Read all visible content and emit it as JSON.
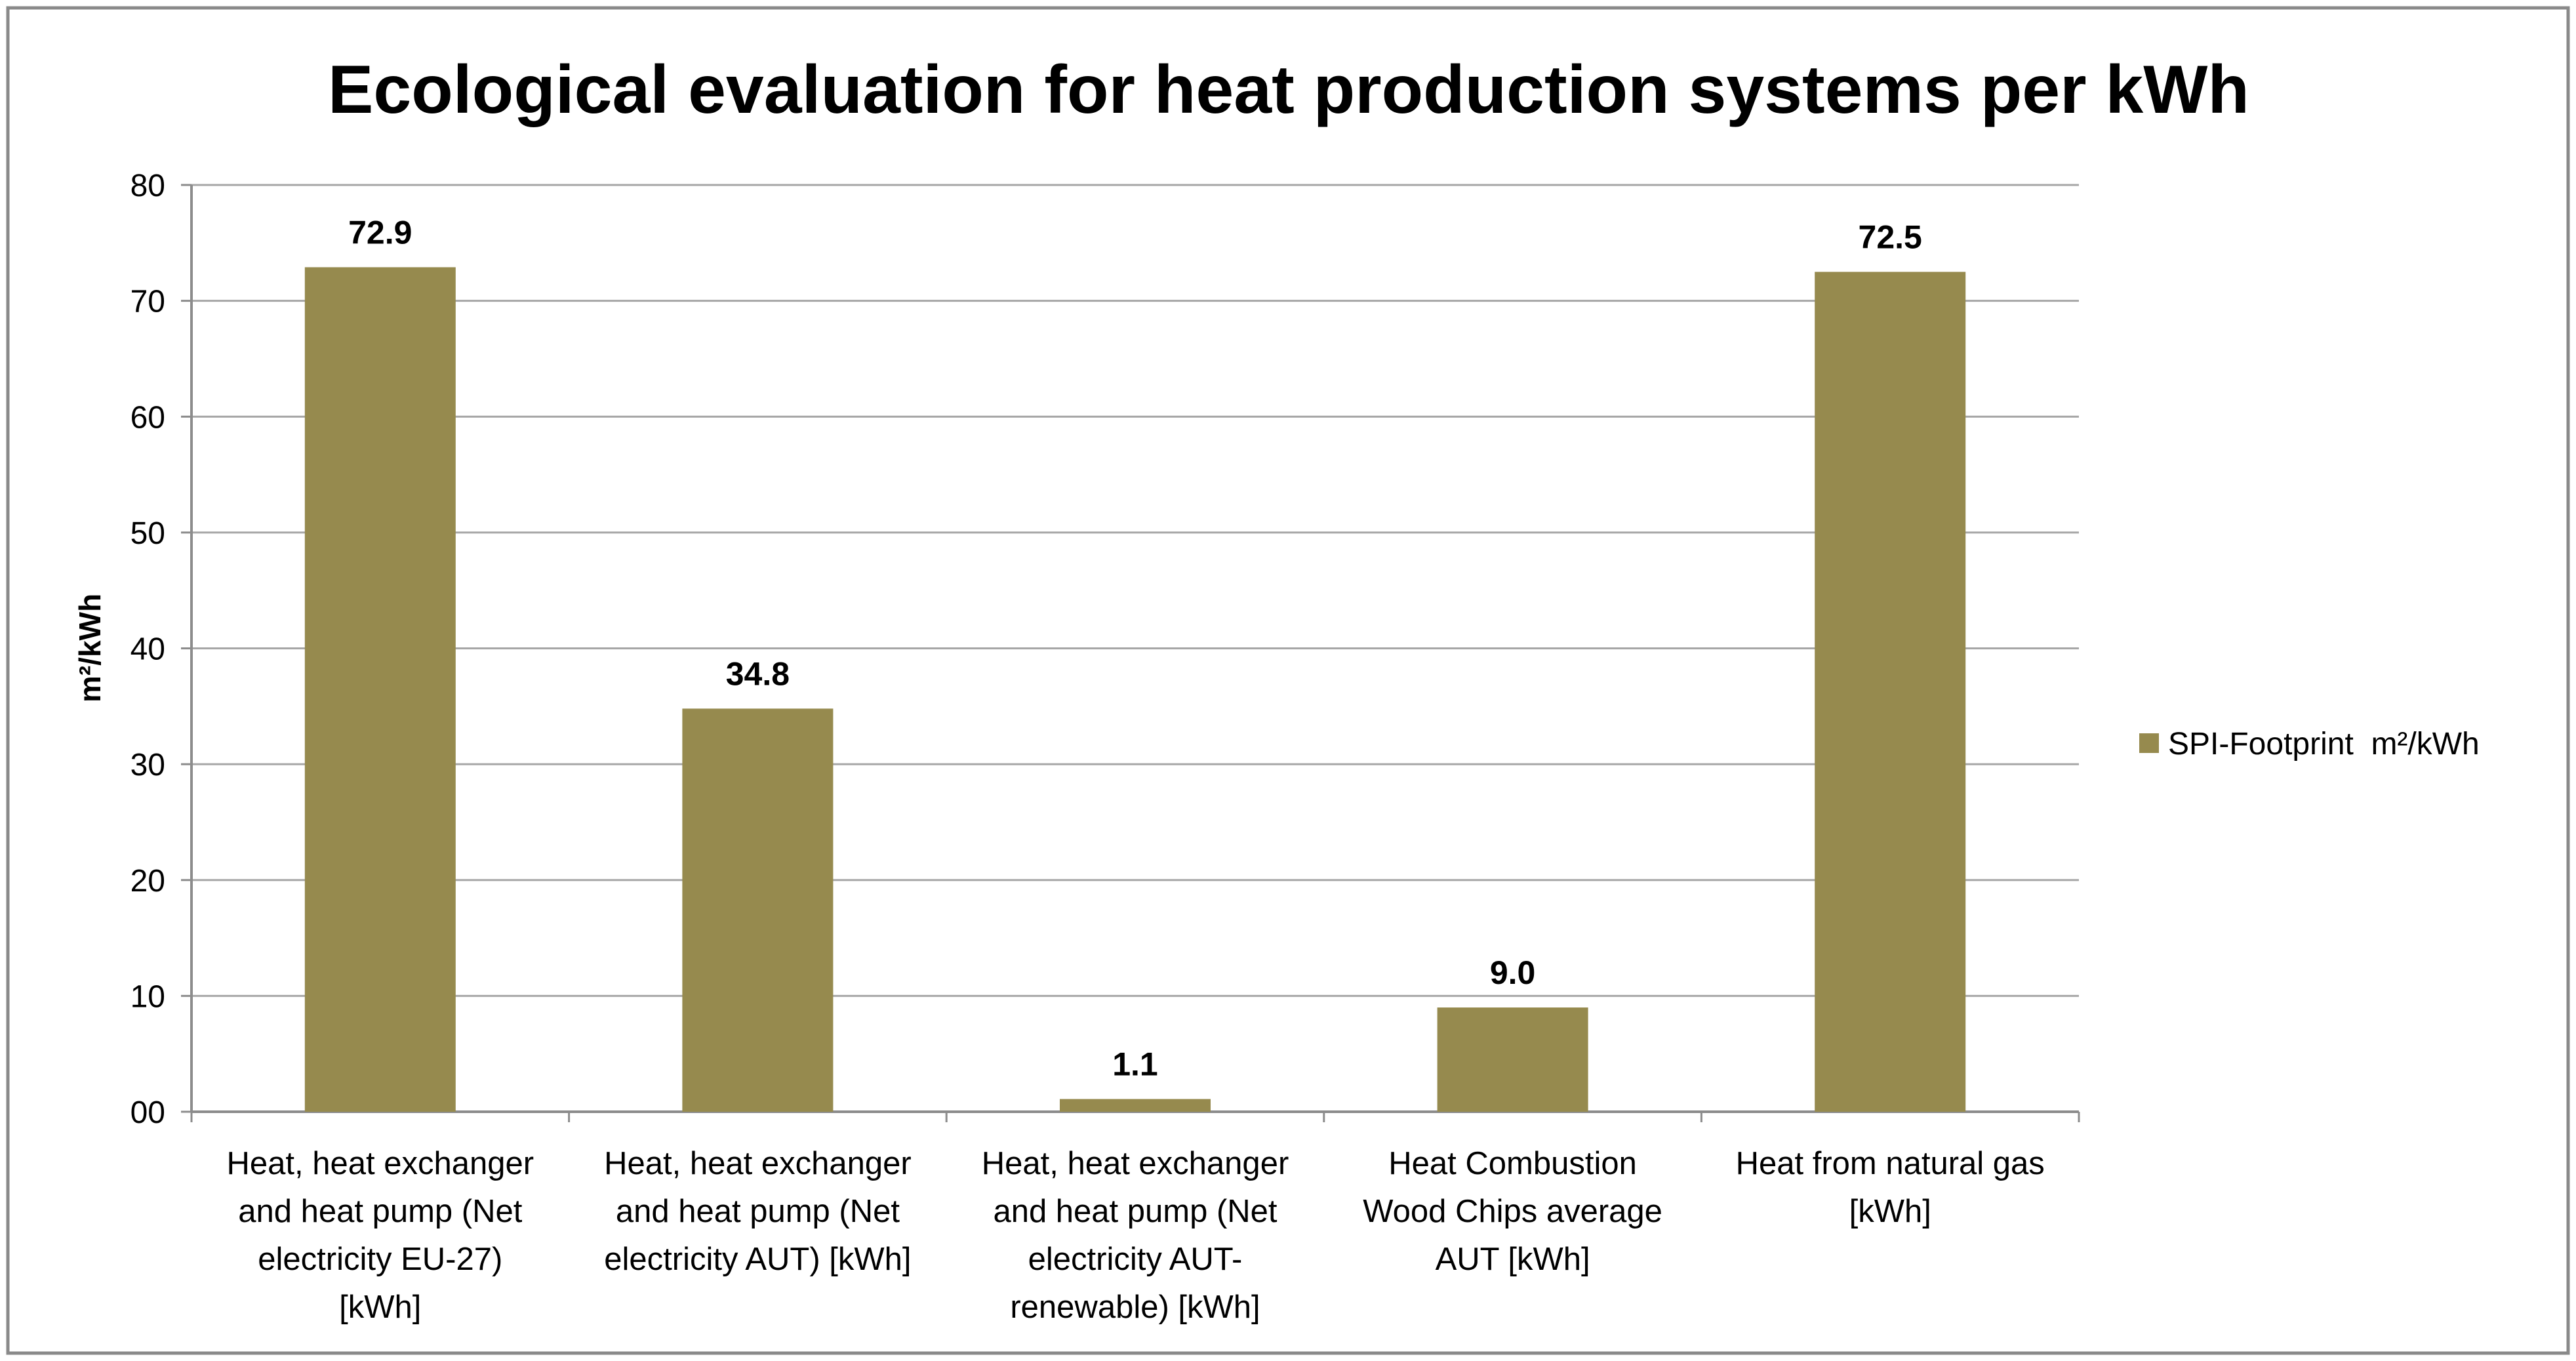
{
  "chart_data": {
    "type": "bar",
    "title": "Ecological evaluation for heat production systems per kWh",
    "xlabel": "",
    "ylabel": "m²/kWh",
    "ylim": [
      0,
      80
    ],
    "yticks": [
      0,
      10,
      20,
      30,
      40,
      50,
      60,
      70,
      80
    ],
    "ytick_labels": [
      "00",
      "10",
      "20",
      "30",
      "40",
      "50",
      "60",
      "70",
      "80"
    ],
    "grid": true,
    "legend_position": "right",
    "categories": [
      [
        "Heat,  heat exchanger",
        "and heat pump (Net",
        "electricity EU-27)",
        "[kWh]"
      ],
      [
        "Heat,  heat exchanger",
        "and heat pump (Net",
        "electricity AUT) [kWh]"
      ],
      [
        "Heat,  heat exchanger",
        "and heat pump (Net",
        "electricity AUT-",
        "renewable) [kWh]"
      ],
      [
        "Heat Combustion",
        "Wood Chips average",
        "AUT [kWh]"
      ],
      [
        "Heat from natural gas",
        "[kWh]"
      ]
    ],
    "series": [
      {
        "name": "SPI-Footprint  m²/kWh",
        "color": "#968a4e",
        "values": [
          72.9,
          34.8,
          1.1,
          9.0,
          72.5
        ],
        "data_labels": [
          "72.9",
          "34.8",
          "1.1",
          "9.0",
          "72.5"
        ]
      }
    ]
  }
}
